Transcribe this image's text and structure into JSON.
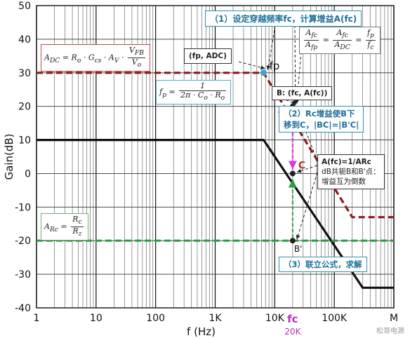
{
  "chart_data": {
    "type": "line",
    "xscale": "log",
    "xlim": [
      1,
      1000000
    ],
    "ylim": [
      -40,
      50
    ],
    "grid": true,
    "xlabel": "f (Hz)",
    "ylabel": "Gain(dB)",
    "x_ticks": [
      {
        "value": 1,
        "label": "1"
      },
      {
        "value": 10,
        "label": "10"
      },
      {
        "value": 100,
        "label": "100"
      },
      {
        "value": 1000,
        "label": "1K"
      },
      {
        "value": 10000,
        "label": "10K"
      },
      {
        "value": 100000,
        "label": "100K"
      },
      {
        "value": 1000000,
        "label": "M"
      }
    ],
    "y_ticks": [
      50,
      40,
      30,
      20,
      10,
      0,
      -10,
      -20,
      -30,
      -40
    ],
    "series": [
      {
        "color": "#8b1a1a",
        "dash": true,
        "points": [
          [
            1,
            30
          ],
          [
            6500,
            30
          ],
          [
            200000,
            -13
          ],
          [
            1000000,
            -13
          ]
        ]
      },
      {
        "color": "#111111",
        "dash": false,
        "points": [
          [
            1,
            10
          ],
          [
            6500,
            10
          ],
          [
            300000,
            -34
          ],
          [
            1000000,
            -34
          ]
        ]
      },
      {
        "color": "#2e9e44",
        "dash": true,
        "points": [
          [
            1,
            -20
          ],
          [
            1000000,
            -20
          ]
        ]
      }
    ],
    "markers": [
      {
        "name": "fp-point",
        "x": 6500,
        "y": 30,
        "color": "#37a6d6",
        "label": "fp"
      },
      {
        "name": "point-B",
        "x": 20000,
        "y": 20,
        "color": "#222222",
        "label": "B"
      },
      {
        "name": "point-C",
        "x": 20000,
        "y": 0,
        "color": "#222222",
        "label": "C"
      },
      {
        "name": "point-B-prime",
        "x": 20000,
        "y": -20,
        "color": "#222222",
        "label": "B'"
      }
    ],
    "fc": {
      "x": 20000,
      "label": "fc",
      "sublabel": "20K",
      "color": "#b62fc0"
    }
  },
  "annotations": {
    "step1": "（1）设定穿越频率fc，计算增益A(fc)",
    "step2_line1": "（2）Rc增益使B下",
    "step2_line2": "移到C，|BC|=|B'C|",
    "step3": "（3）联立公式，求解",
    "fp_adc": "(fp, ADC)",
    "b_fc": "B: (fc, A(fc))",
    "afc_line1": "A(fc)=1/ARc",
    "afc_line2": "dB共轭B和B'点：",
    "afc_line3": "增益互为倒数"
  },
  "formulas": {
    "adc_lhs": "A",
    "adc_lhs_sub": "DC",
    "adc_rhs": "= R",
    "adc_o": "o",
    "adc_mid": " · G",
    "adc_cs": "cs",
    "adc_av": " · A",
    "adc_v": "V",
    "adc_dot": " · ",
    "adc_vfb": "V",
    "adc_vfb_sub": "FB",
    "adc_vo": "V",
    "adc_vo_sub": "o",
    "fp_lhs": "f",
    "fp_sub": "p",
    "fp_eq": " = ",
    "fp_num": "1",
    "fp_den": "2π · C",
    "fp_den_c": "o",
    "fp_den_dot": " · R",
    "fp_den_r": "o",
    "ratio_afc": "A",
    "ratio_fc_sub": "fc",
    "ratio_afp": "A",
    "ratio_fp_sub": "fp",
    "ratio_eq": " = ",
    "ratio_adc_sub": "DC",
    "ratio_fp": "f",
    "ratio_p": "p",
    "ratio_fc": "f",
    "ratio_c": "c",
    "arc_lhs": "A",
    "arc_sub": "Rc",
    "arc_eq": " = ",
    "arc_num": "R",
    "arc_num_sub": "c",
    "arc_den": "R",
    "arc_den_sub": "z"
  },
  "watermark": "松哥电源"
}
